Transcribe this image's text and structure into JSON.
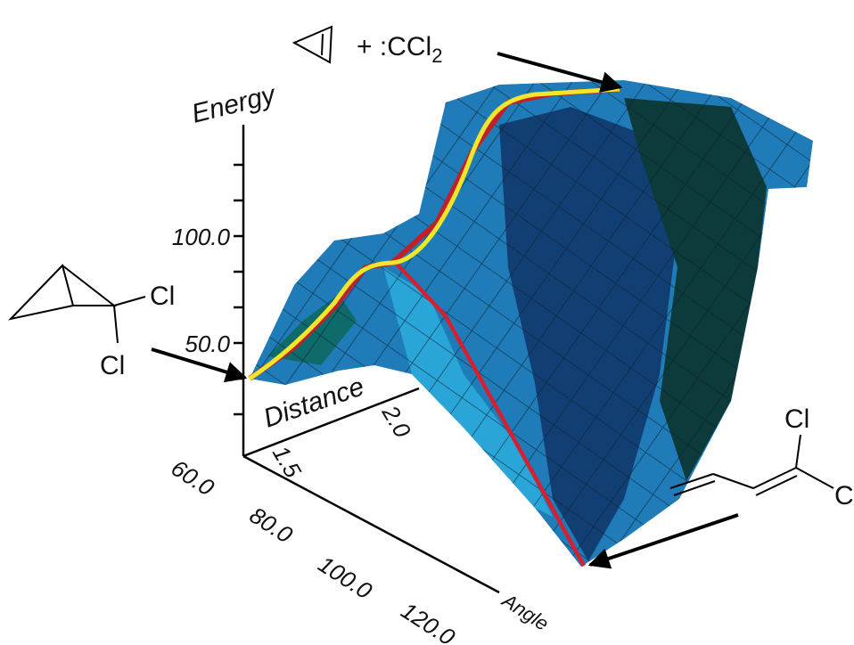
{
  "axes": {
    "energy": {
      "label": "Energy",
      "ticks": [
        "100.0",
        "50.0"
      ]
    },
    "distance": {
      "label": "Distance",
      "ticks": [
        "1.5",
        "2.0"
      ]
    },
    "angle": {
      "label": "Angle",
      "ticks": [
        "60.0",
        "80.0",
        "100.0",
        "120.0"
      ]
    }
  },
  "molecules": {
    "top": {
      "text": "+ :CCl",
      "subscript": "2"
    },
    "left": {
      "atoms": [
        "Cl",
        "Cl"
      ]
    },
    "right": {
      "atoms": [
        "Cl",
        "C"
      ]
    }
  }
}
